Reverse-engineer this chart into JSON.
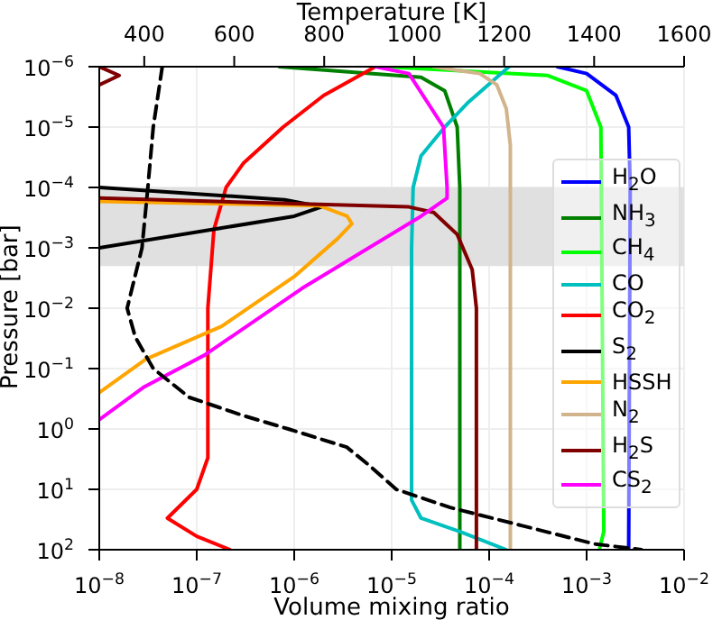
{
  "chart_data": {
    "type": "line",
    "xlabel": "Volume mixing ratio",
    "ylabel": "Pressure [bar]",
    "x2label": "Temperature [K]",
    "log": "xy",
    "grid": true,
    "legend": "right",
    "xlim": [
      1e-08,
      0.01
    ],
    "xticks": [
      {
        "value": 1e-08,
        "label": "10$^{−8}$"
      },
      {
        "value": 1e-07,
        "label": "10$^{−7}$"
      },
      {
        "value": 1e-06,
        "label": "10$^{−6}$"
      },
      {
        "value": 1e-05,
        "label": "10$^{−5}$"
      },
      {
        "value": 0.0001,
        "label": "10$^{−4}$"
      },
      {
        "value": 0.001,
        "label": "10$^{−3}$"
      },
      {
        "value": 0.01,
        "label": "10$^{−2}$"
      }
    ],
    "x2lim": [
      300,
      1600
    ],
    "x2ticks": [
      400,
      600,
      800,
      1000,
      1200,
      1400,
      1600
    ],
    "ylim": [
      100,
      1e-06
    ],
    "yticks": [
      {
        "value": 1e-06,
        "label": "10$^{−6}$"
      },
      {
        "value": 1e-05,
        "label": "10$^{−5}$"
      },
      {
        "value": 0.0001,
        "label": "10$^{−4}$"
      },
      {
        "value": 0.001,
        "label": "10$^{−3}$"
      },
      {
        "value": 0.01,
        "label": "10$^{−2}$"
      },
      {
        "value": 0.1,
        "label": "10$^{−1}$"
      },
      {
        "value": 1,
        "label": "10$^{0}$"
      },
      {
        "value": 10,
        "label": "10$^{1}$"
      },
      {
        "value": 100,
        "label": "10$^{2}$"
      }
    ],
    "bands": [
      {
        "axis": "y",
        "from": 0.0001,
        "to": 0.002,
        "color": "#e0e0e0"
      }
    ],
    "series": [
      {
        "name": "H$_{2}$O",
        "color": "#0000ff",
        "x": [
          0.0005,
          0.001,
          0.002,
          0.0027,
          0.0028,
          0.0027
        ],
        "values": [
          1e-06,
          1.3e-06,
          3e-06,
          1e-05,
          0.0001,
          100
        ]
      },
      {
        "name": "NH$_{3}$",
        "color": "#008000",
        "x": [
          7e-07,
          2e-05,
          3.5e-05,
          4.7e-05,
          5e-05,
          5e-05
        ],
        "values": [
          1e-06,
          1.5e-06,
          2.5e-06,
          1e-05,
          0.0001,
          100
        ]
      },
      {
        "name": "CH$_{4}$",
        "color": "#00ff00",
        "x": [
          8e-06,
          0.0004,
          0.001,
          0.0014,
          0.0015,
          0.00135
        ],
        "values": [
          1e-06,
          1.4e-06,
          2.5e-06,
          1e-05,
          50,
          100
        ]
      },
      {
        "name": "CO",
        "color": "#00bfbf",
        "x": [
          0.00016,
          6e-05,
          3.5e-05,
          2e-05,
          1.66e-05,
          1.6e-05,
          1.6e-05,
          2e-05,
          5e-05,
          0.00015
        ],
        "values": [
          1e-06,
          4e-06,
          1e-05,
          3e-05,
          0.0001,
          0.001,
          15,
          30,
          50,
          100
        ]
      },
      {
        "name": "CO$_{2}$",
        "color": "#ff0000",
        "x": [
          6.8e-06,
          2e-06,
          7.7e-07,
          3e-07,
          2e-07,
          1.5e-07,
          1.3e-07,
          1.3e-07,
          1e-07,
          5e-08,
          1e-07,
          2.2e-07
        ],
        "values": [
          1e-06,
          3e-06,
          1e-05,
          4e-05,
          0.0001,
          0.0005,
          0.01,
          3,
          10,
          30,
          60,
          100
        ]
      },
      {
        "name": "S$_{2}$",
        "color": "#000000",
        "x": [
          1e-08,
          8e-07,
          1.9e-06,
          1e-06,
          1e-08
        ],
        "values": [
          0.0001,
          0.00016,
          0.00021,
          0.0003,
          0.001
        ]
      },
      {
        "name": "HSSH",
        "color": "#ffa500",
        "x": [
          1e-08,
          1.8e-06,
          3.5e-06,
          3.9e-06,
          2.8e-06,
          1e-06,
          1.8e-07,
          3e-08,
          1e-08
        ],
        "values": [
          0.00017,
          0.0002,
          0.0003,
          0.0004,
          0.0007,
          0.003,
          0.02,
          0.07,
          0.25
        ]
      },
      {
        "name": "N$_{2}$",
        "color": "#d2b48c",
        "x": [
          2.7e-05,
          8e-05,
          0.00012,
          0.00015,
          0.000165,
          0.000165
        ],
        "values": [
          1e-06,
          1.3e-06,
          2e-06,
          5e-06,
          2e-05,
          100
        ]
      },
      {
        "name": "H$_{2}$S",
        "color": "#800000",
        "x": [
          1e-08,
          1.6e-08,
          1e-08,
          null,
          1e-08,
          1.5e-05,
          2.7e-05,
          4.7e-05,
          6.7e-05,
          7.4e-05,
          7.4e-05
        ],
        "values": [
          1e-06,
          1.4e-06,
          2e-06,
          null,
          0.00015,
          0.00021,
          0.00026,
          0.0006,
          0.0023,
          0.01,
          100
        ]
      },
      {
        "name": "CS$_{2}$",
        "color": "#ff00ff",
        "x": [
          6.8e-06,
          1.5e-05,
          3.4e-05,
          3.7e-05,
          3.7e-05,
          2e-05,
          1.2e-06,
          1.2e-07,
          2.9e-08,
          1e-08
        ],
        "values": [
          1e-06,
          1.3e-06,
          1e-05,
          0.0001,
          0.00015,
          0.0003,
          0.0047,
          0.06,
          0.2,
          0.7
        ]
      },
      {
        "axis": "x2",
        "color": "#000000",
        "line_style": "dashed",
        "x": [
          440,
          420,
          408,
          395,
          362,
          380,
          420,
          500,
          620,
          720,
          850,
          900,
          960,
          1080,
          1240,
          1400,
          1505
        ],
        "values": [
          1e-06,
          1e-05,
          0.0001,
          0.001,
          0.01,
          0.03,
          0.1,
          0.3,
          0.6,
          1,
          2,
          4,
          10,
          20,
          40,
          80,
          100
        ]
      }
    ]
  }
}
